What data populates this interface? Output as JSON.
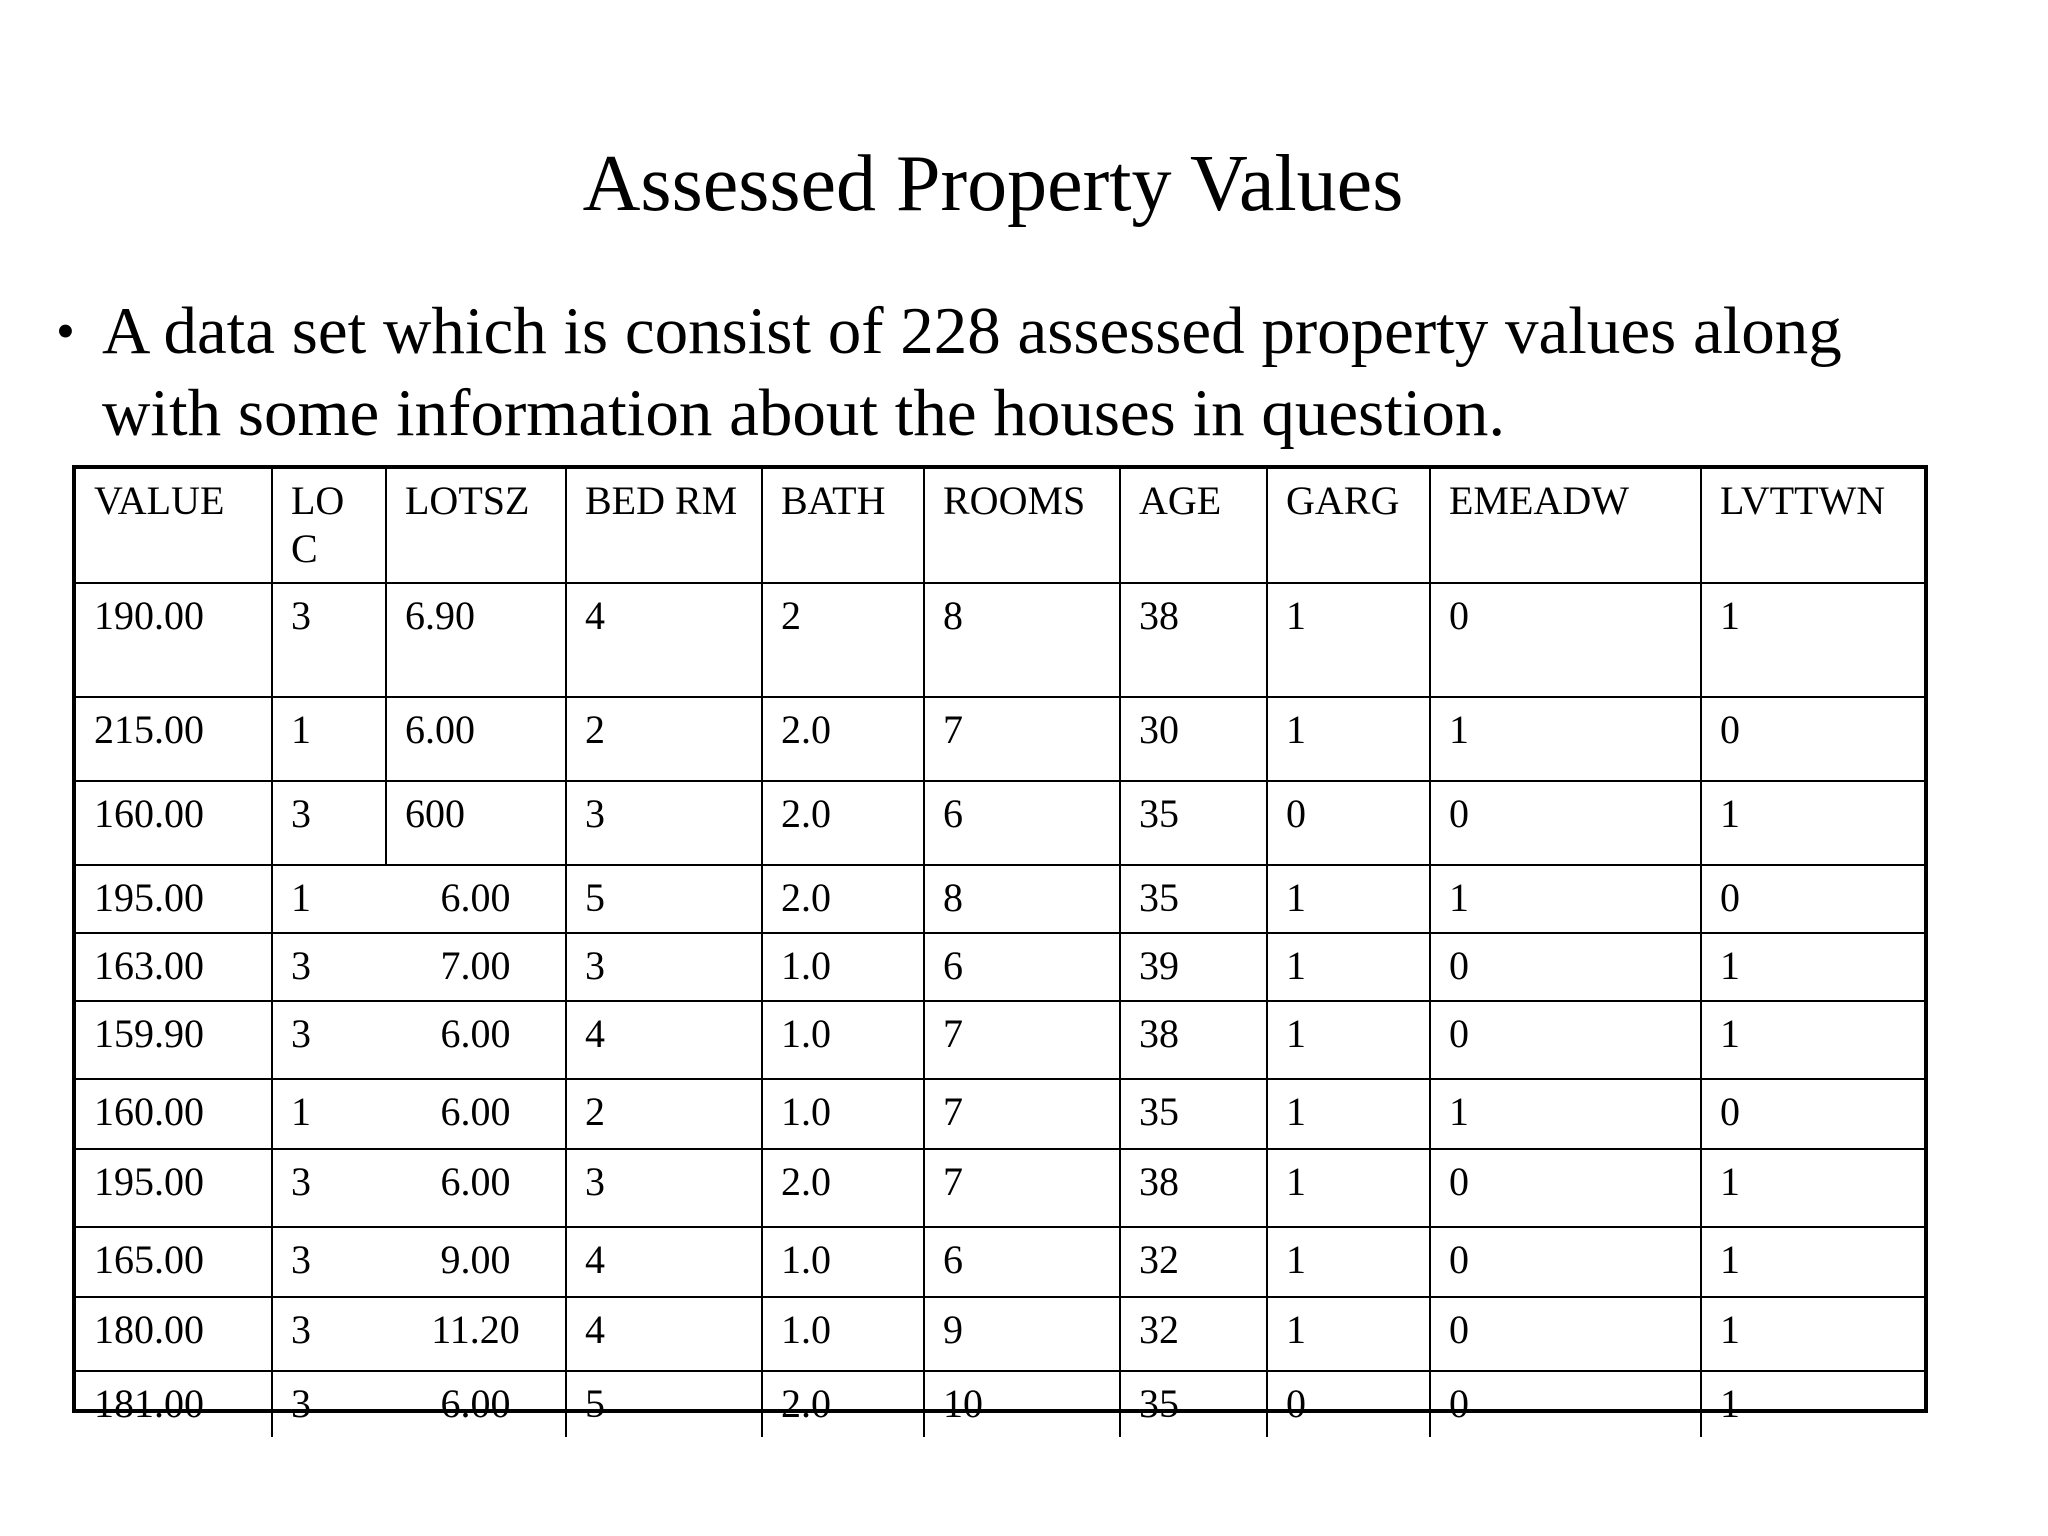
{
  "title": "Assessed Property Values",
  "bullet": {
    "symbol": "•",
    "text": "A data set which is consist of 228 assessed property values along with some information about the houses in question."
  },
  "table": {
    "headers": [
      "VALUE",
      "LO C",
      "LOTSZ",
      "BED RM",
      "BATH",
      "ROOMS",
      "AGE",
      "GARG",
      "EMEADW",
      "LVTTWN"
    ],
    "rows": [
      [
        "190.00",
        "3",
        "6.90",
        "4",
        "2",
        "8",
        "38",
        "1",
        "0",
        "1"
      ],
      [
        "215.00",
        "1",
        "6.00",
        "2",
        "2.0",
        "7",
        "30",
        "1",
        "1",
        "0"
      ],
      [
        "160.00",
        "3",
        "600",
        "3",
        "2.0",
        "6",
        "35",
        "0",
        "0",
        "1"
      ],
      [
        "195.00",
        "1",
        "6.00",
        "5",
        "2.0",
        "8",
        "35",
        "1",
        "1",
        "0"
      ],
      [
        "163.00",
        "3",
        "7.00",
        "3",
        "1.0",
        "6",
        "39",
        "1",
        "0",
        "1"
      ],
      [
        "159.90",
        "3",
        "6.00",
        "4",
        "1.0",
        "7",
        "38",
        "1",
        "0",
        "1"
      ],
      [
        "160.00",
        "1",
        "6.00",
        "2",
        "1.0",
        "7",
        "35",
        "1",
        "1",
        "0"
      ],
      [
        "195.00",
        "3",
        "6.00",
        "3",
        "2.0",
        "7",
        "38",
        "1",
        "0",
        "1"
      ],
      [
        "165.00",
        "3",
        "9.00",
        "4",
        "1.0",
        "6",
        "32",
        "1",
        "0",
        "1"
      ],
      [
        "180.00",
        "3",
        "11.20",
        "4",
        "1.0",
        "9",
        "32",
        "1",
        "0",
        "1"
      ],
      [
        "181.00",
        "3",
        "6.00",
        "5",
        "2.0",
        "10",
        "35",
        "0",
        "0",
        "1"
      ]
    ]
  }
}
